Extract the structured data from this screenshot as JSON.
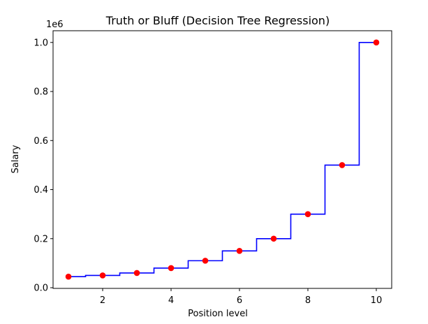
{
  "chart_data": {
    "type": "scatter",
    "title": "Truth or Bluff (Decision Tree Regression)",
    "xlabel": "Position level",
    "ylabel": "Salary",
    "y_offset_label": "1e6",
    "xlim": [
      0.55,
      10.45
    ],
    "ylim": [
      -0.0028,
      1.0478
    ],
    "x_ticks": [
      2,
      4,
      6,
      8,
      10
    ],
    "y_ticks": [
      0.0,
      0.2,
      0.4,
      0.6,
      0.8,
      1.0
    ],
    "x_tick_labels": [
      "2",
      "4",
      "6",
      "8",
      "10"
    ],
    "y_tick_labels": [
      "0.0",
      "0.2",
      "0.4",
      "0.6",
      "0.8",
      "1.0"
    ],
    "grid": false,
    "series": [
      {
        "kind": "scatter",
        "color": "#ff0000",
        "x": [
          1,
          2,
          3,
          4,
          5,
          6,
          7,
          8,
          9,
          10
        ],
        "y": [
          0.045,
          0.05,
          0.06,
          0.08,
          0.11,
          0.15,
          0.2,
          0.3,
          0.5,
          1.0
        ]
      },
      {
        "kind": "step",
        "color": "#0000ff",
        "x": [
          1,
          1.5,
          1.5,
          2.5,
          2.5,
          3.5,
          3.5,
          4.5,
          4.5,
          5.5,
          5.5,
          6.5,
          6.5,
          7.5,
          7.5,
          8.5,
          8.5,
          9.5,
          9.5,
          10
        ],
        "y": [
          0.045,
          0.045,
          0.05,
          0.05,
          0.06,
          0.06,
          0.08,
          0.08,
          0.11,
          0.11,
          0.15,
          0.15,
          0.2,
          0.2,
          0.3,
          0.3,
          0.5,
          0.5,
          1.0,
          1.0
        ]
      }
    ]
  }
}
